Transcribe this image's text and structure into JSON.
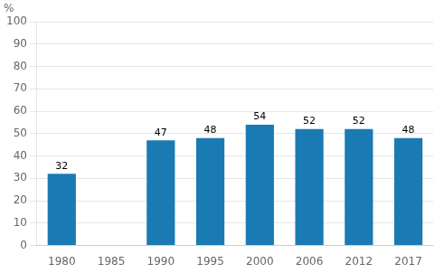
{
  "chart_data": {
    "type": "bar",
    "y_label": "%",
    "categories": [
      "1980",
      "1985",
      "1990",
      "1995",
      "2000",
      "2006",
      "2012",
      "2017"
    ],
    "values": [
      32,
      null,
      47,
      48,
      54,
      52,
      52,
      48
    ],
    "color": "#1a7ab4",
    "ylim": [
      0,
      100
    ],
    "yticks": [
      0,
      10,
      20,
      30,
      40,
      50,
      60,
      70,
      80,
      90,
      100
    ],
    "grid": true,
    "data_labels": true
  }
}
